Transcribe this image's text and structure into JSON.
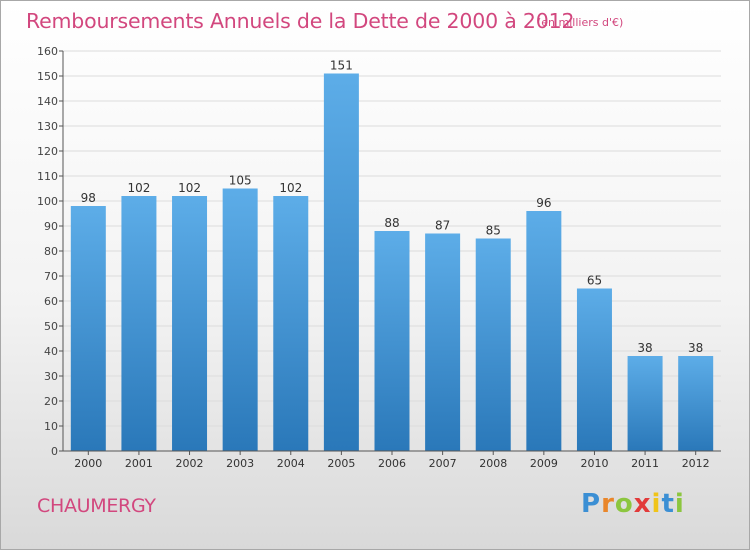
{
  "title": "Remboursements Annuels de la Dette de 2000 à 2012",
  "unit": "(en milliers d'€)",
  "commune": "CHAUMERGY",
  "brand": {
    "letters": [
      "P",
      "r",
      "o",
      "x",
      "i",
      "t",
      "i"
    ],
    "colors": [
      "#3b8fd4",
      "#e9862a",
      "#8cc63f",
      "#e23a3a",
      "#f0c419",
      "#3b8fd4",
      "#8cc63f"
    ]
  },
  "chart_data": {
    "type": "bar",
    "categories": [
      "2000",
      "2001",
      "2002",
      "2003",
      "2004",
      "2005",
      "2006",
      "2007",
      "2008",
      "2009",
      "2010",
      "2011",
      "2012"
    ],
    "values": [
      98,
      102,
      102,
      105,
      102,
      151,
      88,
      87,
      85,
      96,
      65,
      38,
      38
    ],
    "data_labels": [
      "98",
      "102",
      "102",
      "105",
      "102",
      "151",
      "88",
      "87",
      "85",
      "96",
      "65",
      "38",
      "38"
    ],
    "ylim": [
      0,
      160
    ],
    "yticks": [
      0,
      10,
      20,
      30,
      40,
      50,
      60,
      70,
      80,
      90,
      100,
      110,
      120,
      130,
      140,
      150,
      160
    ],
    "grid": true,
    "bar_color_top": "#5dade8",
    "bar_color_bottom": "#2a78b9"
  }
}
